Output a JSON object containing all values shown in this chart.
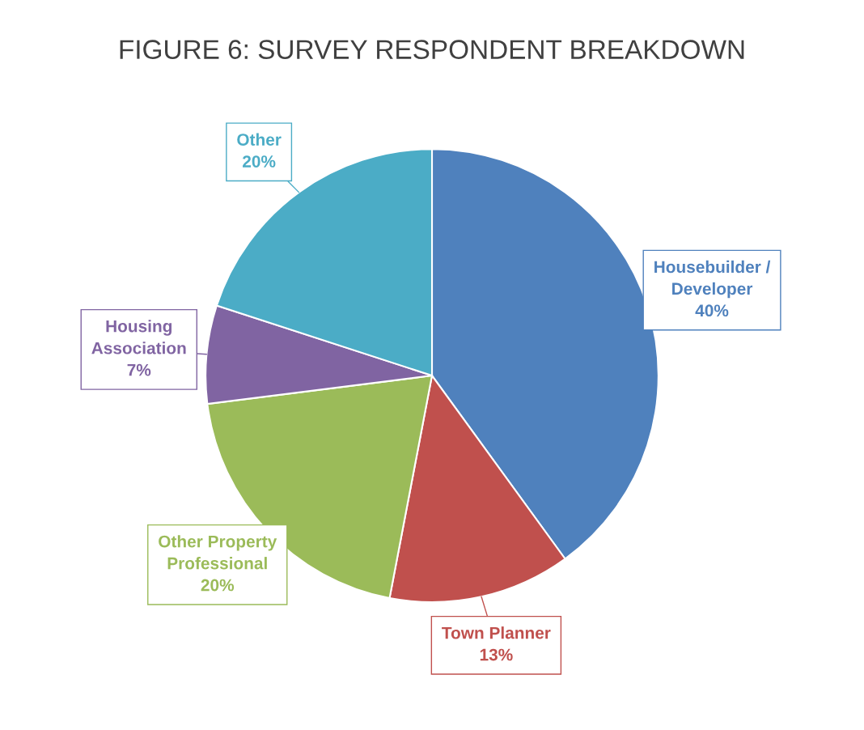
{
  "chart_data": {
    "type": "pie",
    "title": "FIGURE 6: SURVEY RESPONDENT BREAKDOWN",
    "categories": [
      "Housebuilder /\nDeveloper",
      "Town Planner",
      "Other Property\nProfessional",
      "Housing\nAssociation",
      "Other"
    ],
    "values": [
      40,
      13,
      20,
      7,
      20
    ],
    "colors": [
      "#4f81bd",
      "#c0504d",
      "#9bbb59",
      "#8064a2",
      "#4bacc6"
    ],
    "value_labels": [
      "40%",
      "13%",
      "20%",
      "7%",
      "20%"
    ],
    "legend": false
  }
}
